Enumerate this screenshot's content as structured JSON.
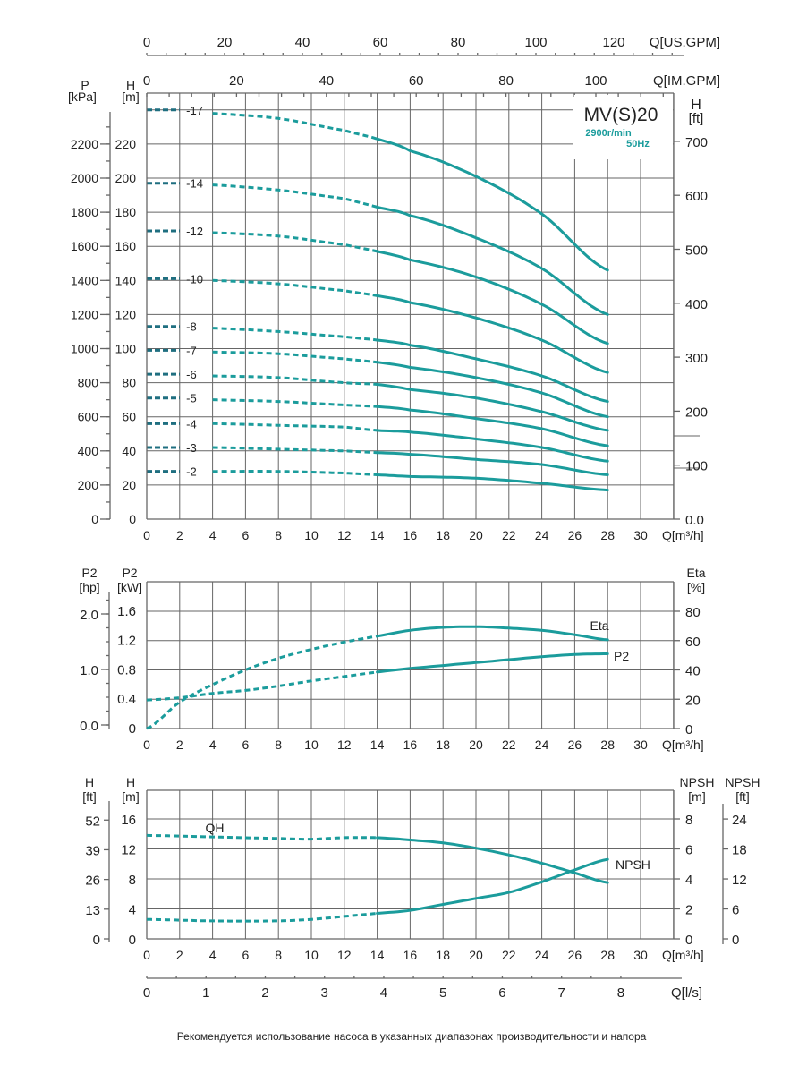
{
  "footer": "Рекомендуется использование насоса в указанных диапазонах производительности и напора",
  "colors": {
    "curve": "#1b9c9c",
    "stub": "#1f6f80",
    "grid": "#666666",
    "subtitle": "#1b9c9c"
  },
  "chart_data": [
    {
      "type": "line",
      "title": "MV(S)20",
      "subtitle_speed": "2900r/min",
      "subtitle_freq": "50Hz",
      "xlabel": "Q[m³/h]",
      "x_ticks": [
        0,
        2,
        4,
        6,
        8,
        10,
        12,
        14,
        16,
        18,
        20,
        22,
        24,
        26,
        28,
        30
      ],
      "xlim": [
        0,
        32
      ],
      "ylabel_p": "P",
      "ylabel_p_unit": "[kPa]",
      "ylabel_h": "H",
      "ylabel_h_unit": "[m]",
      "ylabel_right": "H",
      "ylabel_right_unit": "[ft]",
      "ylim": [
        0,
        250
      ],
      "h_ticks": [
        0,
        20,
        40,
        60,
        80,
        100,
        120,
        140,
        160,
        180,
        200,
        220
      ],
      "kpa_ticks": [
        0,
        200,
        400,
        600,
        800,
        1000,
        1200,
        1400,
        1600,
        1800,
        2000,
        2200
      ],
      "ft_ticks": [
        "0.0",
        "100",
        "200",
        "300",
        "400",
        "500",
        "600",
        "700"
      ],
      "us_gpm_label": "Q[US.GPM]",
      "us_gpm_ticks": [
        0,
        20,
        40,
        60,
        80,
        100,
        120
      ],
      "im_gpm_label": "Q[IM.GPM]",
      "im_gpm_ticks": [
        0,
        20,
        40,
        60,
        80,
        100
      ],
      "x": [
        0,
        4,
        8,
        12,
        14,
        16,
        20,
        24,
        28
      ],
      "series": [
        {
          "name": "-17",
          "values": [
            240,
            238,
            235,
            228,
            223,
            216,
            201,
            179,
            146
          ]
        },
        {
          "name": "-14",
          "values": [
            197,
            196,
            193,
            188,
            183,
            178,
            165,
            147,
            120
          ]
        },
        {
          "name": "-12",
          "values": [
            169,
            168,
            166,
            161,
            157,
            152,
            142,
            126,
            103
          ]
        },
        {
          "name": "-10",
          "values": [
            141,
            140,
            138,
            134,
            131,
            127,
            118,
            105,
            86
          ]
        },
        {
          "name": "-8",
          "values": [
            113,
            112,
            110,
            107,
            105,
            102,
            94,
            84,
            69
          ]
        },
        {
          "name": "-7",
          "values": [
            99,
            98,
            97,
            94,
            92,
            89,
            83,
            74,
            60
          ]
        },
        {
          "name": "-6",
          "values": [
            85,
            84,
            83,
            80,
            79,
            76,
            71,
            63,
            52
          ]
        },
        {
          "name": "-5",
          "values": [
            71,
            70,
            69,
            67,
            66,
            64,
            59,
            53,
            43
          ]
        },
        {
          "name": "-4",
          "values": [
            56,
            56,
            55,
            54,
            52,
            51,
            47,
            42,
            34
          ]
        },
        {
          "name": "-3",
          "values": [
            42,
            42,
            41,
            40,
            39,
            38,
            35,
            32,
            26
          ]
        },
        {
          "name": "-2",
          "values": [
            28,
            28,
            28,
            27,
            26,
            25,
            24,
            21,
            17
          ]
        }
      ]
    },
    {
      "type": "line",
      "xlabel": "Q[m³/h]",
      "x_ticks": [
        0,
        2,
        4,
        6,
        8,
        10,
        12,
        14,
        16,
        18,
        20,
        22,
        24,
        26,
        28,
        30
      ],
      "ylabel_hp": "P2",
      "ylabel_hp_unit": "[hp]",
      "ylabel_kw": "P2",
      "ylabel_kw_unit": "[kW]",
      "ylabel_right": "Eta",
      "ylabel_right_unit": "[%]",
      "kw_ticks": [
        "0",
        "0.4",
        "0.8",
        "1.2",
        "1.6"
      ],
      "hp_ticks": [
        "0.0",
        "1.0",
        "2.0"
      ],
      "eta_ticks": [
        0,
        20,
        40,
        60,
        80
      ],
      "ylim_kw": [
        0,
        1.6
      ],
      "ylim_eta": [
        0,
        80
      ],
      "x": [
        0,
        2,
        4,
        6,
        8,
        10,
        12,
        14,
        16,
        18,
        20,
        22,
        24,
        26,
        28
      ],
      "series": [
        {
          "name": "Eta",
          "axis": "right",
          "values": [
            0,
            18,
            30,
            40,
            48,
            54,
            59,
            63,
            67,
            69,
            69.5,
            68.5,
            67,
            64,
            60.5
          ]
        },
        {
          "name": "P2",
          "axis": "left",
          "values": [
            0.39,
            0.42,
            0.48,
            0.52,
            0.58,
            0.65,
            0.71,
            0.77,
            0.82,
            0.86,
            0.9,
            0.94,
            0.98,
            1.01,
            1.02
          ]
        }
      ]
    },
    {
      "type": "line",
      "xlabel": "Q[m³/h]",
      "x_ticks": [
        0,
        2,
        4,
        6,
        8,
        10,
        12,
        14,
        16,
        18,
        20,
        22,
        24,
        26,
        28,
        30
      ],
      "ylabel_ft": "H",
      "ylabel_ft_unit": "[ft]",
      "ylabel_m": "H",
      "ylabel_m_unit": "[m]",
      "ylabel_npsh_m": "NPSH",
      "ylabel_npsh_m_unit": "[m]",
      "ylabel_npsh_ft": "NPSH",
      "ylabel_npsh_ft_unit": "[ft]",
      "h_ticks": [
        0,
        4,
        8,
        12,
        16
      ],
      "ft_ticks": [
        0,
        13,
        26,
        39,
        52
      ],
      "npsh_m_ticks": [
        0,
        2,
        4,
        6,
        8
      ],
      "npsh_ft_ticks": [
        0,
        6,
        12,
        18,
        24
      ],
      "ylim_h": [
        0,
        16
      ],
      "ylim_npsh": [
        0,
        8
      ],
      "ls_label": "Q[l/s]",
      "ls_ticks": [
        0,
        1,
        2,
        3,
        4,
        5,
        6,
        7,
        8
      ],
      "x": [
        0,
        4,
        8,
        10,
        12,
        14,
        16,
        18,
        20,
        22,
        24,
        26,
        28
      ],
      "series": [
        {
          "name": "QH",
          "axis": "left",
          "values": [
            13.8,
            13.6,
            13.4,
            13.3,
            13.5,
            13.5,
            13.2,
            12.8,
            12.1,
            11.2,
            10.1,
            8.8,
            7.5
          ]
        },
        {
          "name": "NPSH",
          "axis": "right",
          "values": [
            1.3,
            1.2,
            1.2,
            1.3,
            1.5,
            1.7,
            1.9,
            2.3,
            2.7,
            3.1,
            3.8,
            4.6,
            5.3
          ]
        }
      ]
    }
  ]
}
